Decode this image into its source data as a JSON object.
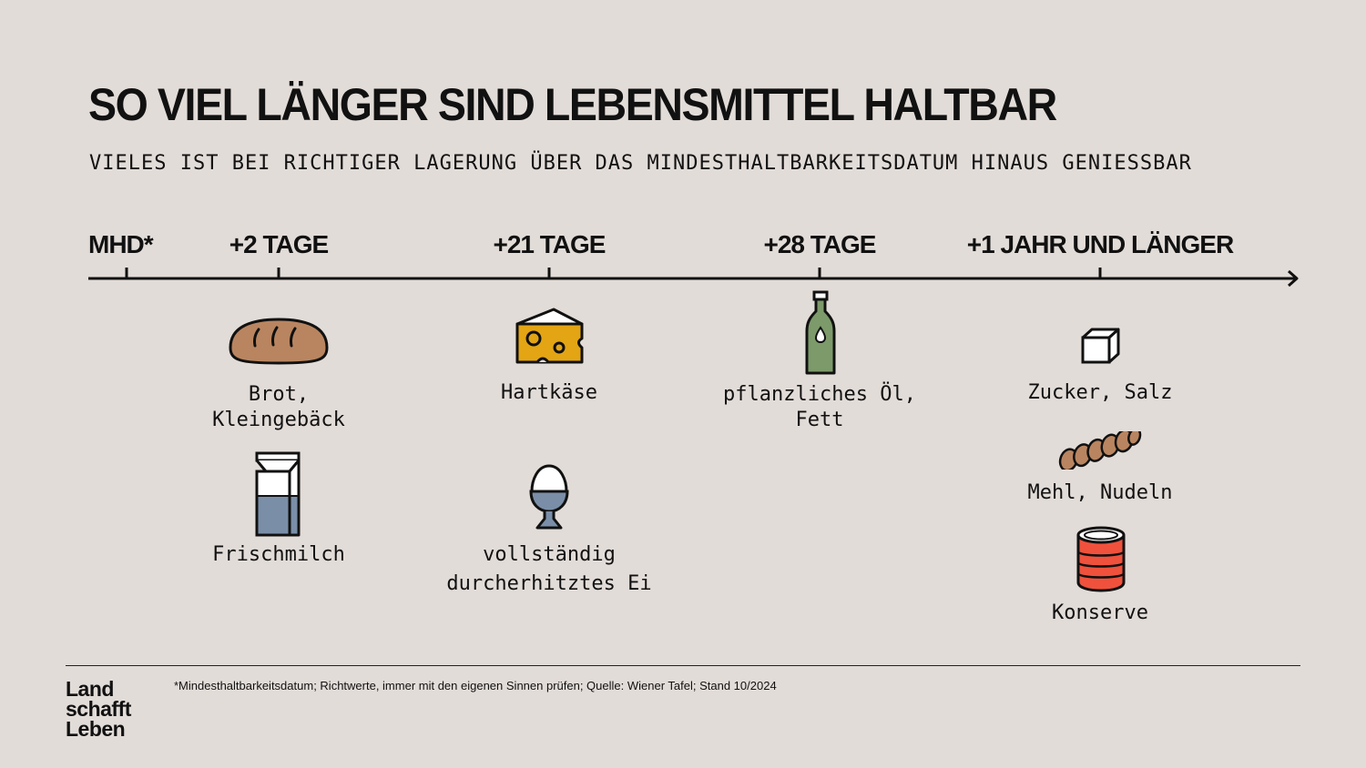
{
  "header": {
    "title": "SO VIEL LÄNGER SIND LEBENSMITTEL HALTBAR",
    "subtitle": "VIELES IST BEI RICHTIGER LAGERUNG ÜBER DAS MINDESTHALTBARKEITSDATUM HINAUS GENIESSBAR"
  },
  "timeline": {
    "markers": [
      {
        "label": "MHD*"
      },
      {
        "label": "+2 TAGE"
      },
      {
        "label": "+21 TAGE"
      },
      {
        "label": "+28 TAGE"
      },
      {
        "label": "+1 JAHR UND LÄNGER"
      }
    ]
  },
  "foods": {
    "bread": {
      "line1": "Brot,",
      "line2": "Kleingebäck",
      "icon": "bread-icon"
    },
    "milk": {
      "line1": "Frischmilch",
      "icon": "milk-carton-icon"
    },
    "cheese": {
      "line1": "Hartkäse",
      "icon": "cheese-icon"
    },
    "egg": {
      "line1": "vollständig",
      "line2": "durcherhitztes Ei",
      "icon": "egg-cup-icon"
    },
    "oil": {
      "line1": "pflanzliches Öl,",
      "line2": "Fett",
      "icon": "oil-bottle-icon"
    },
    "sugar": {
      "line1": "Zucker, Salz",
      "icon": "sugar-cube-icon"
    },
    "flour": {
      "line1": "Mehl, Nudeln",
      "icon": "pasta-icon"
    },
    "can": {
      "line1": "Konserve",
      "icon": "tin-can-icon"
    }
  },
  "colors": {
    "background": "#e2dcd8",
    "bread": "#b98560",
    "cheese": "#e3a514",
    "milk": "#7a8ea8",
    "oil": "#7c9a6a",
    "can": "#f0513c"
  },
  "footer": {
    "footnote": "*Mindesthaltbarkeitsdatum; Richtwerte, immer mit den eigenen Sinnen prüfen; Quelle: Wiener Tafel; Stand 10/2024",
    "logo": {
      "line1": "Land",
      "line2": "schafft",
      "line3": "Leben"
    }
  }
}
